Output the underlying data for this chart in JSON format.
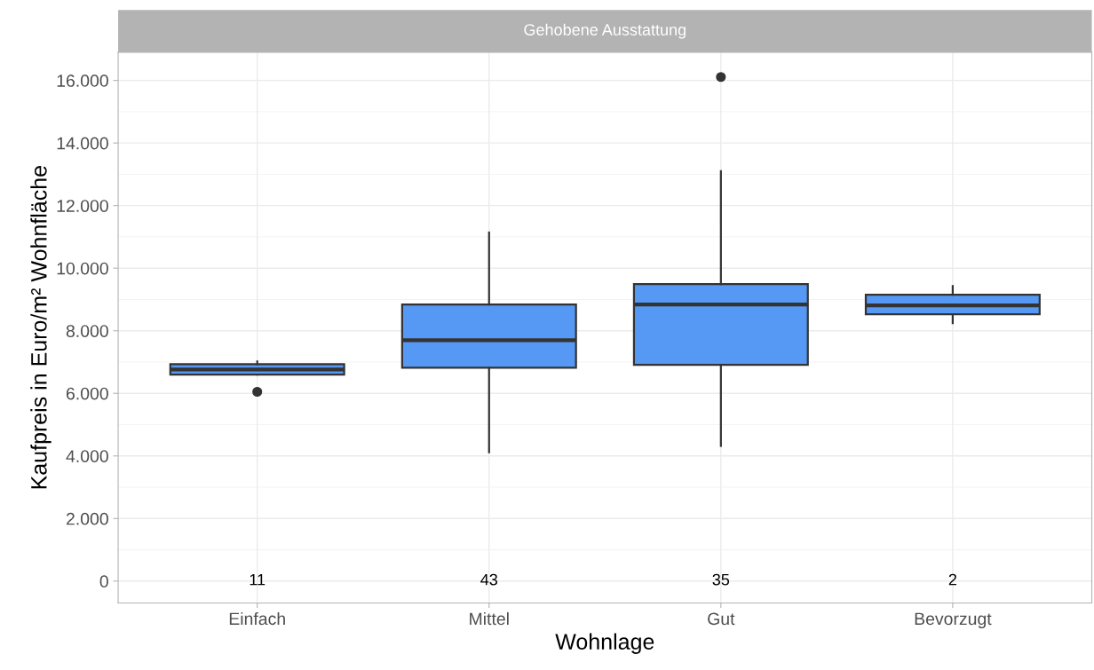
{
  "chart_data": {
    "type": "box",
    "title": "Gehobene Ausstattung",
    "xlabel": "Wohnlage",
    "ylabel": "Kaufpreis in Euro/m² Wohnfläche",
    "categories": [
      "Einfach",
      "Mittel",
      "Gut",
      "Bevorzugt"
    ],
    "series": [
      {
        "color": "#5599f5",
        "boxes": [
          {
            "low": 6600,
            "q1": 6600,
            "median": 6760,
            "q3": 6930,
            "high": 7020,
            "outliers": [
              6050
            ]
          },
          {
            "low": 4120,
            "q1": 6820,
            "median": 7700,
            "q3": 8840,
            "high": 11140
          },
          {
            "low": 4320,
            "q1": 6910,
            "median": 8840,
            "q3": 9490,
            "high": 13100,
            "outliers": [
              16110
            ]
          },
          {
            "low": 8240,
            "q1": 8530,
            "median": 8810,
            "q3": 9150,
            "high": 9430
          }
        ]
      }
    ],
    "ylim": [
      -700,
      16900
    ],
    "yticks": [
      {
        "value": 0,
        "label": "0"
      },
      {
        "value": 2000,
        "label": "2.000"
      },
      {
        "value": 4000,
        "label": "4.000"
      },
      {
        "value": 6000,
        "label": "6.000"
      },
      {
        "value": 8000,
        "label": "8.000"
      },
      {
        "value": 10000,
        "label": "10.000"
      },
      {
        "value": 12000,
        "label": "12.000"
      },
      {
        "value": 14000,
        "label": "14.000"
      },
      {
        "value": 16000,
        "label": "16.000"
      }
    ],
    "annotations": [
      "11",
      "43",
      "35",
      "2"
    ],
    "grid": true
  }
}
